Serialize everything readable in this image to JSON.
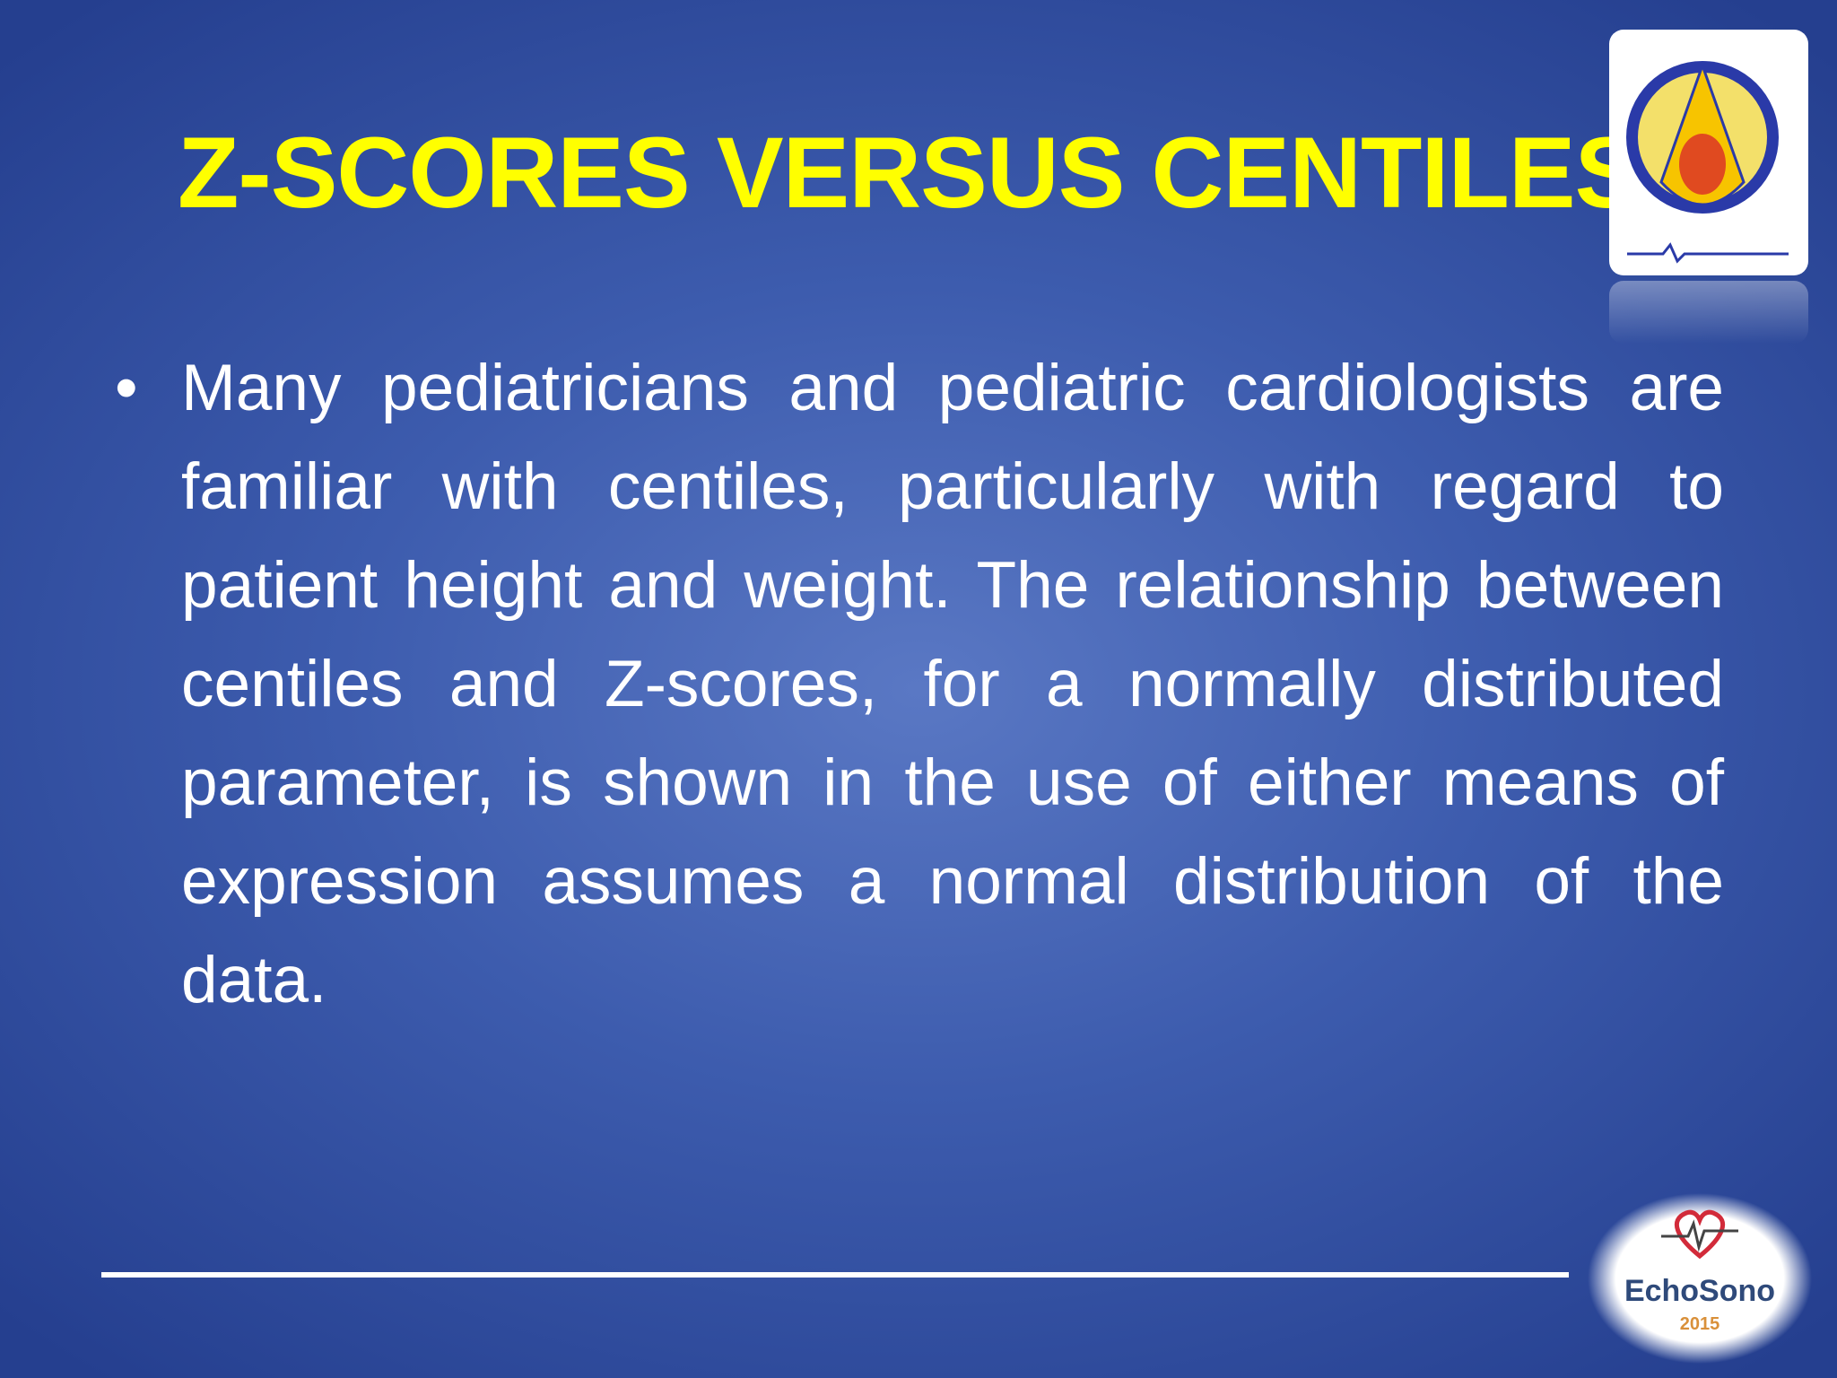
{
  "slide": {
    "title": "Z-SCORES VERSUS CENTILES",
    "bullets": [
      "Many pediatricians and pediatric cardiologists are familiar with centiles, particularly with regard to patient height and weight. The relationship between centiles and Z-scores, for a normally distributed parameter, is shown in the use of either means of expression assumes a normal distribution of the data."
    ],
    "footer_logo": {
      "name": "EchoSono",
      "year": "2015"
    }
  }
}
